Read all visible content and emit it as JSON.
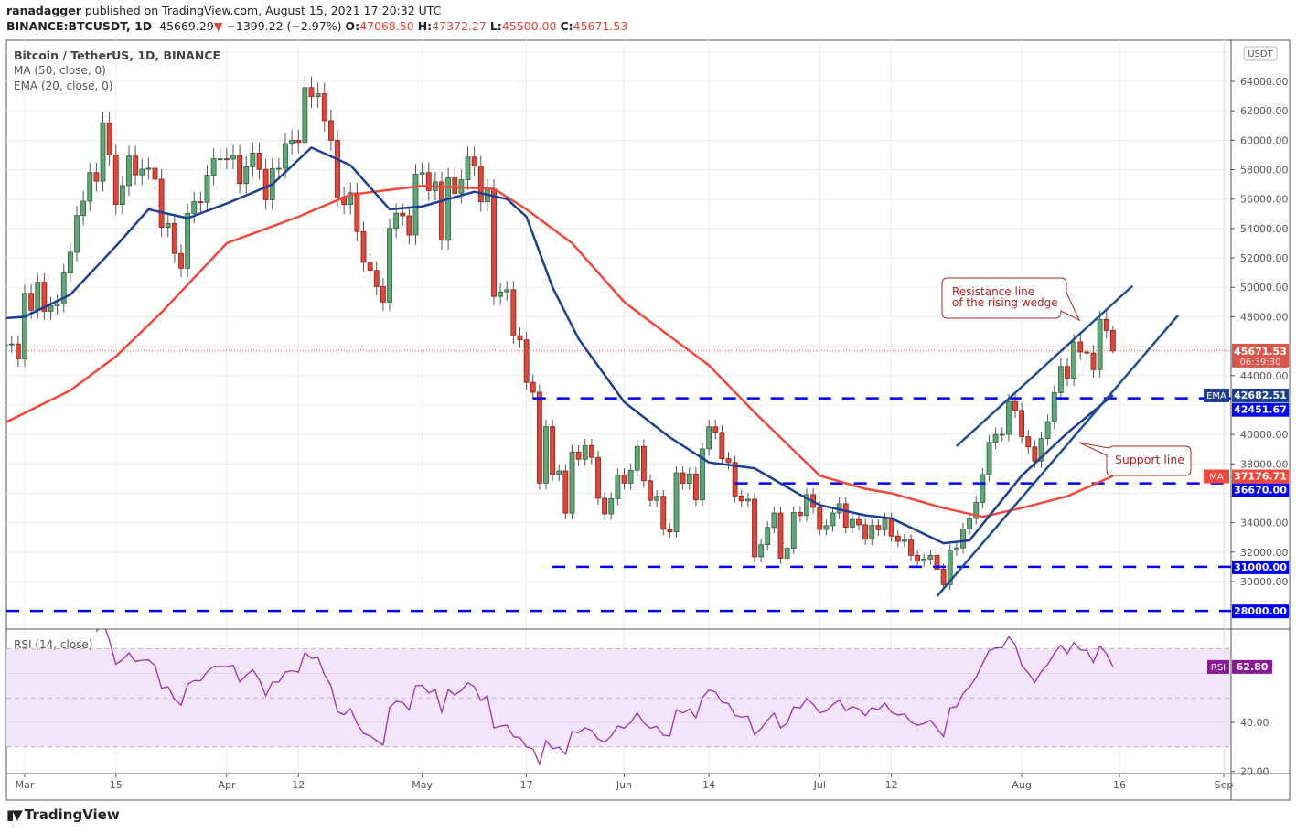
{
  "header": {
    "published_by": "ranadagger",
    "published_text": "published on TradingView.com, August 15, 2021 17:20:32 UTC",
    "symbol": "BINANCE:BTCUSDT, 1D",
    "last": "45669.29",
    "change": "−1399.22 (−2.97%)",
    "o_label": "O:",
    "o": "47068.50",
    "h_label": "H:",
    "h": "47372.27",
    "l_label": "L:",
    "l": "45500.00",
    "c_label": "C:",
    "c": "45671.53"
  },
  "legend": {
    "title": "Bitcoin / TetherUS, 1D, BINANCE",
    "ma": "MA (50, close, 0)",
    "ema": "EMA (20, close, 0)",
    "rsi": "RSI (14, close)"
  },
  "currency_badge": "USDT",
  "brand": "TradingView",
  "annotations": {
    "resistance": [
      "Resistance line",
      "of the rising wedge"
    ],
    "support": "Support line"
  },
  "colors": {
    "up": "#5fa778",
    "down": "#e0463a",
    "ma": "#f0483a",
    "ema": "#1c3f94",
    "levels": "#0000ff",
    "rsi": "#9b2fae",
    "wedge": "#1f4e8f"
  },
  "chart_data": [
    {
      "type": "candlestick",
      "title": "Bitcoin / TetherUS, 1D, BINANCE",
      "ylim": [
        28000,
        66000
      ],
      "y_ticks": [
        "64000.00",
        "62000.00",
        "60000.00",
        "58000.00",
        "56000.00",
        "54000.00",
        "52000.00",
        "50000.00",
        "48000.00",
        "44000.00",
        "40000.00",
        "38000.00",
        "34000.00",
        "32000.00",
        "30000.00"
      ],
      "x_ticks": [
        {
          "date": "2021-03-01",
          "label": "Mar"
        },
        {
          "date": "2021-03-15",
          "label": "15"
        },
        {
          "date": "2021-04-01",
          "label": "Apr"
        },
        {
          "date": "2021-04-12",
          "label": "12"
        },
        {
          "date": "2021-05-01",
          "label": "May"
        },
        {
          "date": "2021-05-17",
          "label": "17"
        },
        {
          "date": "2021-06-01",
          "label": "Jun"
        },
        {
          "date": "2021-06-14",
          "label": "14"
        },
        {
          "date": "2021-07-01",
          "label": "Jul"
        },
        {
          "date": "2021-07-12",
          "label": "12"
        },
        {
          "date": "2021-08-01",
          "label": "Aug"
        },
        {
          "date": "2021-08-16",
          "label": "16"
        },
        {
          "date": "2021-09-01",
          "label": "Sep"
        }
      ],
      "close_by_month": [
        {
          "month": "2021-02",
          "from_day": 26,
          "close": [
            46100,
            46150,
            45140
          ]
        },
        {
          "month": "2021-03",
          "from_day": 1,
          "close": [
            49590,
            48440,
            50350,
            48370,
            48750,
            48880,
            50970,
            52380,
            54880,
            55860,
            57800,
            57220,
            61190,
            59000,
            55630,
            56920,
            58920,
            57650,
            58030,
            58100,
            57350,
            54080,
            54340,
            52300,
            51300,
            55030,
            55820,
            55780,
            57630,
            58740,
            58740
          ]
        },
        {
          "month": "2021-04",
          "from_day": 1,
          "close": [
            58720,
            58970,
            57060,
            58200,
            59130,
            58020,
            55950,
            58080,
            58090,
            59770,
            60000,
            59850,
            63580,
            62960,
            63160,
            61330,
            60000,
            56150,
            55630,
            56430,
            53790,
            51700,
            51150,
            50050,
            49000,
            54010,
            55040,
            54860,
            53560,
            57700
          ]
        },
        {
          "month": "2021-05",
          "from_day": 1,
          "close": [
            57800,
            56580,
            57170,
            53200,
            57440,
            56390,
            57310,
            58860,
            58240,
            55820,
            56670,
            49380,
            49690,
            49840,
            46710,
            46430,
            43540,
            42870,
            36690,
            40530,
            37280,
            37520,
            34650,
            38800,
            38320,
            39240,
            38440,
            35660,
            34600,
            35630,
            37250
          ]
        },
        {
          "month": "2021-06",
          "from_day": 1,
          "close": [
            36690,
            37570,
            39190,
            36850,
            35520,
            35800,
            33550,
            33380,
            37390,
            36680,
            37310,
            35550,
            39020,
            40520,
            40140,
            38350,
            38090,
            35820,
            35480,
            35600,
            31680,
            32510,
            33680,
            34660,
            31590,
            32270,
            34700,
            34490,
            35910,
            35040
          ]
        },
        {
          "month": "2021-07",
          "from_day": 1,
          "close": [
            33540,
            33800,
            34660,
            35290,
            33690,
            34220,
            33860,
            32880,
            33810,
            33520,
            34260,
            33090,
            32730,
            32820,
            31780,
            31390,
            31530,
            31780,
            30840,
            29790,
            32140,
            32290,
            33580,
            34290,
            35380,
            37270,
            39460,
            40000,
            40010,
            42240,
            41630
          ]
        },
        {
          "month": "2021-08",
          "from_day": 1,
          "close": [
            39850,
            39150,
            38190,
            39720,
            40870,
            42840,
            44620,
            43830,
            46290,
            45600,
            45530,
            44400,
            47820,
            47070,
            45671.53
          ]
        }
      ],
      "last_candle": {
        "open": 47068.5,
        "high": 47372.27,
        "low": 45500.0,
        "close": 45671.53
      },
      "series": [
        {
          "name": "MA (50, close, 0)",
          "label": "MA",
          "last": "37176.71",
          "points": [
            [
              "2021-02-26",
              40800
            ],
            [
              "2021-03-08",
              43000
            ],
            [
              "2021-03-15",
              45300
            ],
            [
              "2021-03-22",
              48300
            ],
            [
              "2021-04-01",
              53000
            ],
            [
              "2021-04-12",
              54800
            ],
            [
              "2021-04-20",
              56300
            ],
            [
              "2021-05-01",
              56900
            ],
            [
              "2021-05-12",
              56700
            ],
            [
              "2021-05-17",
              55300
            ],
            [
              "2021-05-24",
              53000
            ],
            [
              "2021-06-01",
              49000
            ],
            [
              "2021-06-07",
              47000
            ],
            [
              "2021-06-14",
              44700
            ],
            [
              "2021-06-21",
              41500
            ],
            [
              "2021-07-01",
              37200
            ],
            [
              "2021-07-08",
              36300
            ],
            [
              "2021-07-12",
              36000
            ],
            [
              "2021-07-20",
              35000
            ],
            [
              "2021-07-26",
              34400
            ],
            [
              "2021-08-01",
              35000
            ],
            [
              "2021-08-08",
              35800
            ],
            [
              "2021-08-15",
              37176.71
            ]
          ]
        },
        {
          "name": "EMA (20, close, 0)",
          "label": "EMA",
          "last": "42682.51",
          "points": [
            [
              "2021-02-26",
              47900
            ],
            [
              "2021-03-01",
              48000
            ],
            [
              "2021-03-08",
              49500
            ],
            [
              "2021-03-15",
              52800
            ],
            [
              "2021-03-20",
              55300
            ],
            [
              "2021-03-26",
              54700
            ],
            [
              "2021-04-01",
              55700
            ],
            [
              "2021-04-08",
              57000
            ],
            [
              "2021-04-14",
              59500
            ],
            [
              "2021-04-20",
              58300
            ],
            [
              "2021-04-26",
              55300
            ],
            [
              "2021-05-01",
              55500
            ],
            [
              "2021-05-09",
              56500
            ],
            [
              "2021-05-14",
              56000
            ],
            [
              "2021-05-17",
              54800
            ],
            [
              "2021-05-21",
              50000
            ],
            [
              "2021-05-25",
              46500
            ],
            [
              "2021-06-01",
              42200
            ],
            [
              "2021-06-08",
              39800
            ],
            [
              "2021-06-14",
              38100
            ],
            [
              "2021-06-21",
              37700
            ],
            [
              "2021-06-28",
              35900
            ],
            [
              "2021-07-01",
              35200
            ],
            [
              "2021-07-08",
              34500
            ],
            [
              "2021-07-12",
              34300
            ],
            [
              "2021-07-20",
              32600
            ],
            [
              "2021-07-24",
              32800
            ],
            [
              "2021-07-28",
              35000
            ],
            [
              "2021-08-01",
              37200
            ],
            [
              "2021-08-08",
              40100
            ],
            [
              "2021-08-15",
              42682.51
            ]
          ]
        }
      ],
      "current_price": {
        "value": "45671.53",
        "countdown": "06:39:30"
      },
      "horizontal_levels": [
        {
          "value": 42451.67,
          "label": "42451.67",
          "from": "2021-05-18"
        },
        {
          "value": 36670,
          "label": "36670.00",
          "from": "2021-06-18"
        },
        {
          "value": 31000,
          "label": "31000.00",
          "from": "2021-05-21"
        },
        {
          "value": 28000,
          "label": "28000.00",
          "from": "2021-02-26"
        }
      ],
      "trendlines": [
        {
          "name": "resistance",
          "from": [
            "2021-07-22",
            39200
          ],
          "to": [
            "2021-08-18",
            50100
          ]
        },
        {
          "name": "support",
          "from": [
            "2021-07-19",
            29000
          ],
          "to": [
            "2021-08-25",
            48100
          ]
        }
      ]
    },
    {
      "type": "line",
      "title": "RSI (14, close)",
      "ylim": [
        20,
        80
      ],
      "y_ticks": [
        "40.00",
        "20.00"
      ],
      "bands": [
        30,
        50,
        70
      ],
      "last": "62.80",
      "label": "RSI"
    }
  ]
}
